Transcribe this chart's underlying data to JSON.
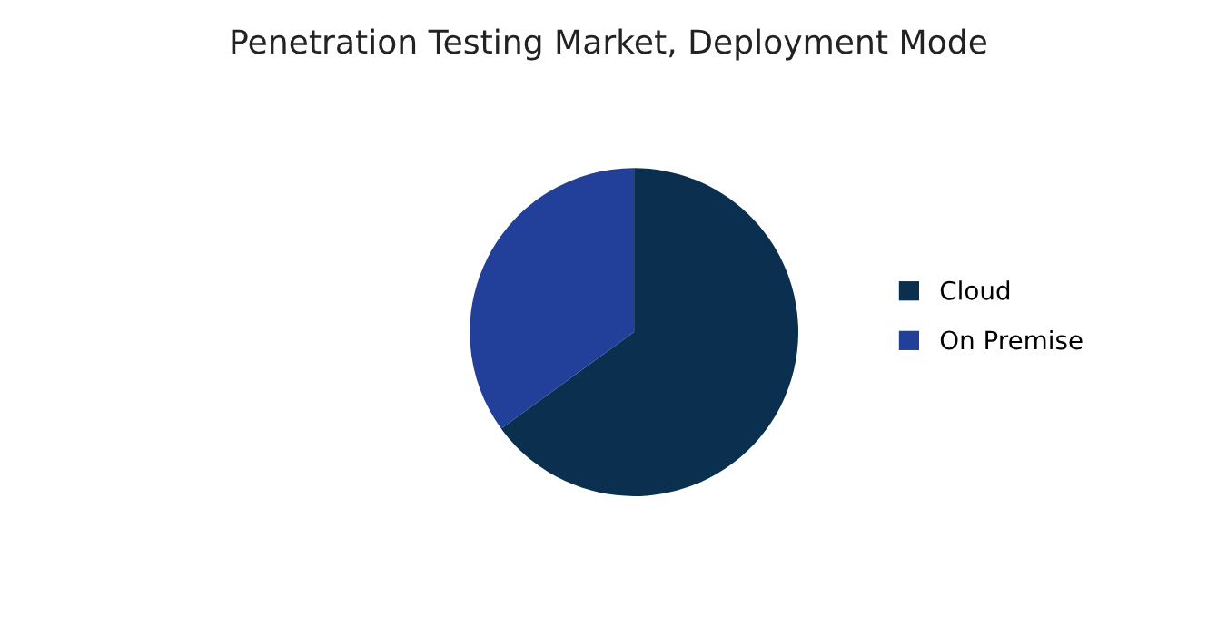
{
  "chart_data": {
    "type": "pie",
    "title": "Penetration Testing Market, Deployment Mode",
    "categories": [
      "Cloud",
      "On Premise"
    ],
    "values": [
      65,
      35
    ],
    "colors": [
      "#0b2f4f",
      "#22409a"
    ],
    "legend": "right"
  }
}
